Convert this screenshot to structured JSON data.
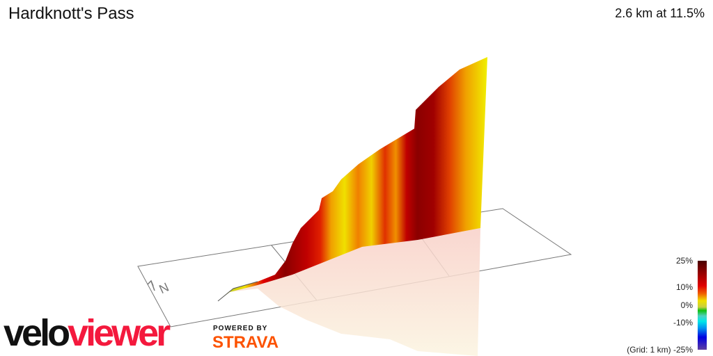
{
  "segment": {
    "title": "Hardknott's Pass",
    "summary": "2.6 km at 11.5%"
  },
  "legend": {
    "labels": [
      "25%",
      "10%",
      "0%",
      "-10%",
      "-25%"
    ],
    "grid_note": "(Grid: 1 km)",
    "colors": {
      "max": "#4a0000",
      "high": "#e00000",
      "mid": "#f0e000",
      "zero": "#10c010",
      "neg": "#00e8e8",
      "min": "#6040a0"
    }
  },
  "compass": {
    "label": "N",
    "icon": "north-arrow-icon"
  },
  "branding": {
    "velo": "velo",
    "viewer": "viewer",
    "powered_by": "POWERED BY",
    "strava": "STRAVA",
    "velo_color": "#111111",
    "viewer_color": "#f4193d",
    "strava_color": "#fc5200"
  }
}
